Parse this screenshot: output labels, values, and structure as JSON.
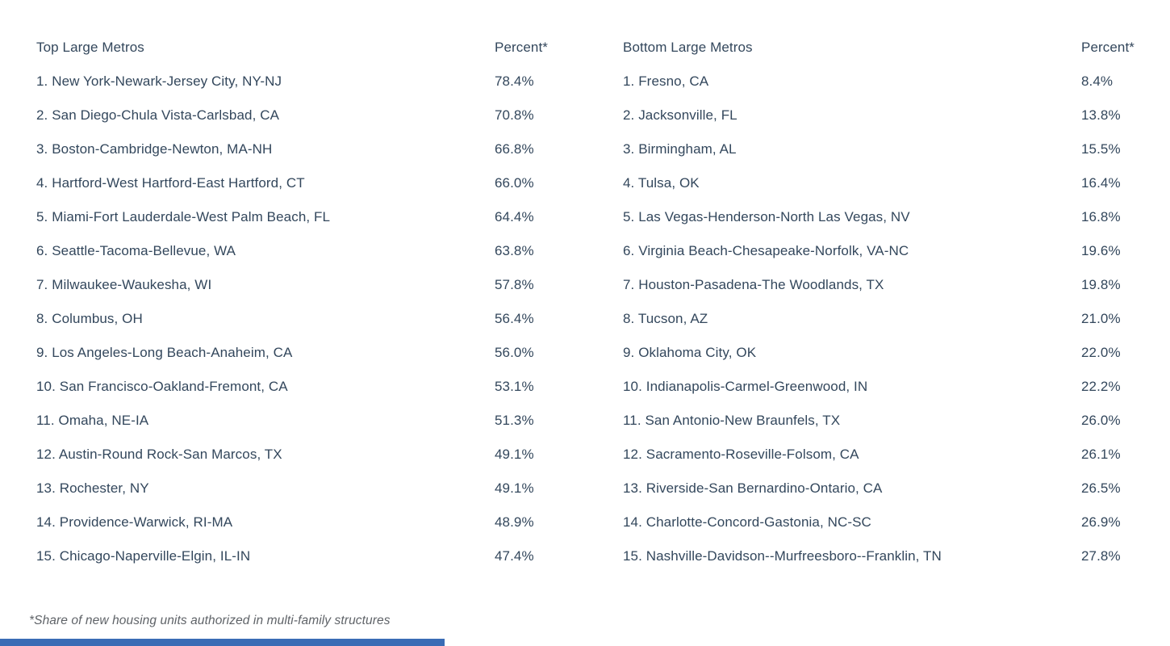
{
  "tables": [
    {
      "title": "Top Large Metros",
      "percent_header": "Percent*",
      "rows": [
        {
          "rank": 1,
          "metro": "New York-Newark-Jersey City, NY-NJ",
          "percent": "78.4%"
        },
        {
          "rank": 2,
          "metro": "San Diego-Chula Vista-Carlsbad, CA",
          "percent": "70.8%"
        },
        {
          "rank": 3,
          "metro": "Boston-Cambridge-Newton, MA-NH",
          "percent": "66.8%"
        },
        {
          "rank": 4,
          "metro": "Hartford-West Hartford-East Hartford, CT",
          "percent": "66.0%"
        },
        {
          "rank": 5,
          "metro": "Miami-Fort Lauderdale-West Palm Beach, FL",
          "percent": "64.4%"
        },
        {
          "rank": 6,
          "metro": "Seattle-Tacoma-Bellevue, WA",
          "percent": "63.8%"
        },
        {
          "rank": 7,
          "metro": "Milwaukee-Waukesha, WI",
          "percent": "57.8%"
        },
        {
          "rank": 8,
          "metro": "Columbus, OH",
          "percent": "56.4%"
        },
        {
          "rank": 9,
          "metro": "Los Angeles-Long Beach-Anaheim, CA",
          "percent": "56.0%"
        },
        {
          "rank": 10,
          "metro": "San Francisco-Oakland-Fremont, CA",
          "percent": "53.1%"
        },
        {
          "rank": 11,
          "metro": "Omaha, NE-IA",
          "percent": "51.3%"
        },
        {
          "rank": 12,
          "metro": "Austin-Round Rock-San Marcos, TX",
          "percent": "49.1%"
        },
        {
          "rank": 13,
          "metro": "Rochester, NY",
          "percent": "49.1%"
        },
        {
          "rank": 14,
          "metro": "Providence-Warwick, RI-MA",
          "percent": "48.9%"
        },
        {
          "rank": 15,
          "metro": "Chicago-Naperville-Elgin, IL-IN",
          "percent": "47.4%"
        }
      ]
    },
    {
      "title": "Bottom Large Metros",
      "percent_header": "Percent*",
      "rows": [
        {
          "rank": 1,
          "metro": "Fresno, CA",
          "percent": "8.4%"
        },
        {
          "rank": 2,
          "metro": "Jacksonville, FL",
          "percent": "13.8%"
        },
        {
          "rank": 3,
          "metro": "Birmingham, AL",
          "percent": "15.5%"
        },
        {
          "rank": 4,
          "metro": "Tulsa, OK",
          "percent": "16.4%"
        },
        {
          "rank": 5,
          "metro": "Las Vegas-Henderson-North Las Vegas, NV",
          "percent": "16.8%"
        },
        {
          "rank": 6,
          "metro": "Virginia Beach-Chesapeake-Norfolk, VA-NC",
          "percent": "19.6%"
        },
        {
          "rank": 7,
          "metro": "Houston-Pasadena-The Woodlands, TX",
          "percent": "19.8%"
        },
        {
          "rank": 8,
          "metro": "Tucson, AZ",
          "percent": "21.0%"
        },
        {
          "rank": 9,
          "metro": "Oklahoma City, OK",
          "percent": "22.0%"
        },
        {
          "rank": 10,
          "metro": "Indianapolis-Carmel-Greenwood, IN",
          "percent": "22.2%"
        },
        {
          "rank": 11,
          "metro": "San Antonio-New Braunfels, TX",
          "percent": "26.0%"
        },
        {
          "rank": 12,
          "metro": "Sacramento-Roseville-Folsom, CA",
          "percent": "26.1%"
        },
        {
          "rank": 13,
          "metro": "Riverside-San Bernardino-Ontario, CA",
          "percent": "26.5%"
        },
        {
          "rank": 14,
          "metro": "Charlotte-Concord-Gastonia, NC-SC",
          "percent": "26.9%"
        },
        {
          "rank": 15,
          "metro": "Nashville-Davidson--Murfreesboro--Franklin, TN",
          "percent": "27.8%"
        }
      ]
    }
  ],
  "footnote": "*Share of new housing units authorized in multi-family structures",
  "colors": {
    "text": "#33475c",
    "footnote_text": "#5f6368",
    "accent_bar": "#3a6cb5",
    "background": "#ffffff"
  },
  "chart_data": [
    {
      "type": "table",
      "title": "Top Large Metros",
      "columns": [
        "Metro",
        "Percent*"
      ],
      "categories": [
        "New York-Newark-Jersey City, NY-NJ",
        "San Diego-Chula Vista-Carlsbad, CA",
        "Boston-Cambridge-Newton, MA-NH",
        "Hartford-West Hartford-East Hartford, CT",
        "Miami-Fort Lauderdale-West Palm Beach, FL",
        "Seattle-Tacoma-Bellevue, WA",
        "Milwaukee-Waukesha, WI",
        "Columbus, OH",
        "Los Angeles-Long Beach-Anaheim, CA",
        "San Francisco-Oakland-Fremont, CA",
        "Omaha, NE-IA",
        "Austin-Round Rock-San Marcos, TX",
        "Rochester, NY",
        "Providence-Warwick, RI-MA",
        "Chicago-Naperville-Elgin, IL-IN"
      ],
      "values": [
        78.4,
        70.8,
        66.8,
        66.0,
        64.4,
        63.8,
        57.8,
        56.4,
        56.0,
        53.1,
        51.3,
        49.1,
        49.1,
        48.9,
        47.4
      ],
      "value_unit": "%",
      "footnote": "*Share of new housing units authorized in multi-family structures"
    },
    {
      "type": "table",
      "title": "Bottom Large Metros",
      "columns": [
        "Metro",
        "Percent*"
      ],
      "categories": [
        "Fresno, CA",
        "Jacksonville, FL",
        "Birmingham, AL",
        "Tulsa, OK",
        "Las Vegas-Henderson-North Las Vegas, NV",
        "Virginia Beach-Chesapeake-Norfolk, VA-NC",
        "Houston-Pasadena-The Woodlands, TX",
        "Tucson, AZ",
        "Oklahoma City, OK",
        "Indianapolis-Carmel-Greenwood, IN",
        "San Antonio-New Braunfels, TX",
        "Sacramento-Roseville-Folsom, CA",
        "Riverside-San Bernardino-Ontario, CA",
        "Charlotte-Concord-Gastonia, NC-SC",
        "Nashville-Davidson--Murfreesboro--Franklin, TN"
      ],
      "values": [
        8.4,
        13.8,
        15.5,
        16.4,
        16.8,
        19.6,
        19.8,
        21.0,
        22.0,
        22.2,
        26.0,
        26.1,
        26.5,
        26.9,
        27.8
      ],
      "value_unit": "%",
      "footnote": "*Share of new housing units authorized in multi-family structures"
    }
  ]
}
